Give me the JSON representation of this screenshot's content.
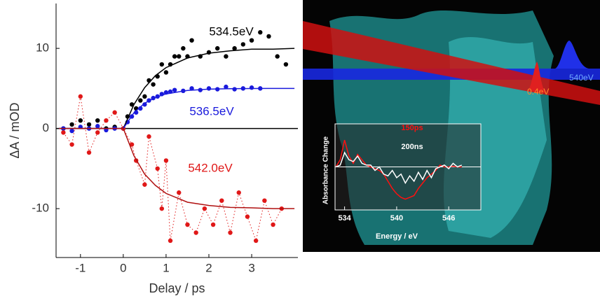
{
  "chart_data": [
    {
      "type": "scatter",
      "x_label": "Delay / ps",
      "y_label": "ΔA / mOD",
      "xlim": [
        -1.57,
        4.08
      ],
      "ylim": [
        -16.1,
        15.6
      ],
      "xticks": [
        -1,
        0,
        1,
        2,
        3
      ],
      "yticks": [
        -10,
        0,
        10
      ],
      "zero_line": true,
      "series": [
        {
          "name": "534.5eV",
          "color": "#000000",
          "mode": "markers",
          "x": [
            -1.4,
            -1.2,
            -1.0,
            -0.8,
            -0.6,
            -0.4,
            -0.2,
            0.0,
            0.1,
            0.2,
            0.3,
            0.4,
            0.5,
            0.6,
            0.7,
            0.8,
            0.9,
            1.0,
            1.1,
            1.2,
            1.3,
            1.4,
            1.5,
            1.6,
            1.8,
            2.0,
            2.2,
            2.4,
            2.6,
            2.8,
            3.0,
            3.2,
            3.4,
            3.6,
            3.8
          ],
          "values": [
            0,
            0.5,
            1,
            0.5,
            1,
            0,
            0.2,
            0,
            1.5,
            3,
            2.5,
            3.5,
            4,
            6,
            5.5,
            6.5,
            8,
            7,
            8,
            9,
            9,
            10,
            9,
            11,
            9,
            9.5,
            10,
            9,
            10,
            10.5,
            11,
            12,
            11.5,
            9,
            8
          ]
        },
        {
          "name": "536.5eV",
          "color": "#1a1adc",
          "mode": "markers",
          "x": [
            -1.4,
            -1.2,
            -1.0,
            -0.8,
            -0.6,
            -0.4,
            -0.2,
            0.0,
            0.1,
            0.2,
            0.3,
            0.4,
            0.5,
            0.6,
            0.7,
            0.8,
            0.9,
            1.0,
            1.1,
            1.2,
            1.4,
            1.6,
            1.8,
            2.0,
            2.2,
            2.4,
            2.6,
            2.8,
            3.0,
            3.2
          ],
          "values": [
            0,
            -0.3,
            0.2,
            0,
            0.3,
            -0.2,
            0,
            0,
            0.8,
            1.5,
            2,
            2.5,
            3,
            3.5,
            3.8,
            4,
            4.3,
            4.5,
            4.6,
            4.8,
            4.7,
            5,
            4.8,
            5,
            4.9,
            5.2,
            4.9,
            5,
            5.1,
            5
          ]
        },
        {
          "name": "542.0eV",
          "color": "#e01818",
          "mode": "markers",
          "line_style": "dotted",
          "x": [
            -1.4,
            -1.2,
            -1.0,
            -0.8,
            -0.6,
            -0.4,
            -0.2,
            0.0,
            0.2,
            0.3,
            0.5,
            0.6,
            0.8,
            0.9,
            1.0,
            1.1,
            1.3,
            1.5,
            1.7,
            1.9,
            2.1,
            2.3,
            2.5,
            2.7,
            2.9,
            3.1,
            3.3,
            3.5,
            3.7
          ],
          "values": [
            -0.5,
            -2,
            4,
            -3,
            -0.5,
            1,
            2,
            0,
            -2,
            -4,
            -7,
            -1,
            -5,
            -10,
            -4,
            -14,
            -8,
            -12,
            -13,
            -10,
            -12,
            -9,
            -13,
            -8,
            -11,
            -14,
            -9,
            -12,
            -10
          ]
        },
        {
          "color": "#000000",
          "mode": "line",
          "x": [
            -1.5,
            0,
            0.25,
            0.5,
            0.75,
            1,
            1.5,
            2,
            2.5,
            3,
            3.5,
            4
          ],
          "values": [
            0,
            0,
            3.0,
            5.1,
            6.6,
            7.6,
            8.8,
            9.4,
            9.7,
            9.9,
            9.9,
            10
          ]
        },
        {
          "color": "#1a1adc",
          "mode": "line",
          "x": [
            -1.5,
            0,
            0.25,
            0.5,
            0.75,
            1,
            1.5,
            2,
            2.5,
            3,
            3.5,
            4
          ],
          "values": [
            0,
            0,
            1.97,
            3.16,
            3.88,
            4.32,
            4.75,
            4.91,
            4.97,
            4.99,
            5,
            5
          ]
        },
        {
          "color": "#b01010",
          "mode": "line",
          "x": [
            -1.5,
            0,
            0.25,
            0.5,
            0.75,
            1,
            1.5,
            2,
            2.5,
            3,
            3.5,
            4
          ],
          "values": [
            0,
            0,
            -3.4,
            -5.7,
            -7.1,
            -8.1,
            -9.2,
            -9.6,
            -9.85,
            -9.9,
            -10,
            -10
          ]
        }
      ]
    },
    {
      "type": "line",
      "x_label": "Energy / eV",
      "y_label": "Absorbance Change",
      "xlim": [
        532.9,
        549.7
      ],
      "ylim": [
        -1.2,
        1.2
      ],
      "xticks": [
        534,
        540,
        546
      ],
      "zero_line": true,
      "series": [
        {
          "name": "150ps",
          "color": "#ff1010",
          "x": [
            533,
            533.5,
            534,
            534.5,
            535,
            535.5,
            536,
            536.5,
            537,
            537.5,
            538,
            538.5,
            539,
            539.5,
            540,
            540.5,
            541,
            541.5,
            542,
            542.5,
            543,
            543.5,
            544,
            544.5,
            545,
            545.5,
            546,
            546.5,
            547,
            547.5
          ],
          "values": [
            0,
            0.2,
            0.75,
            0.3,
            0.1,
            0.35,
            0.2,
            0.05,
            0,
            -0.05,
            -0.1,
            -0.2,
            -0.4,
            -0.6,
            -0.75,
            -0.85,
            -0.9,
            -0.85,
            -0.8,
            -0.6,
            -0.45,
            -0.3,
            -0.2,
            -0.1,
            0.05,
            0,
            0,
            0.02,
            0,
            0
          ]
        },
        {
          "name": "200ns",
          "color": "#ffffff",
          "x": [
            533,
            533.5,
            534,
            534.5,
            535,
            535.5,
            536,
            536.5,
            537,
            537.5,
            538,
            538.5,
            539,
            539.5,
            540,
            540.5,
            541,
            541.5,
            542,
            542.5,
            543,
            543.5,
            544,
            544.5,
            545,
            545.5,
            546,
            546.5,
            547,
            547.5
          ],
          "values": [
            0,
            0.05,
            0.4,
            0.2,
            0.15,
            0.3,
            0.1,
            0.05,
            0.05,
            -0.1,
            0,
            -0.2,
            -0.25,
            -0.1,
            -0.3,
            -0.2,
            -0.45,
            -0.25,
            -0.4,
            -0.15,
            -0.35,
            -0.1,
            -0.3,
            -0.05,
            0,
            0.05,
            -0.05,
            0.1,
            0,
            0.05
          ]
        }
      ]
    }
  ],
  "image_labels": [
    "540eV",
    "0.4eV"
  ]
}
